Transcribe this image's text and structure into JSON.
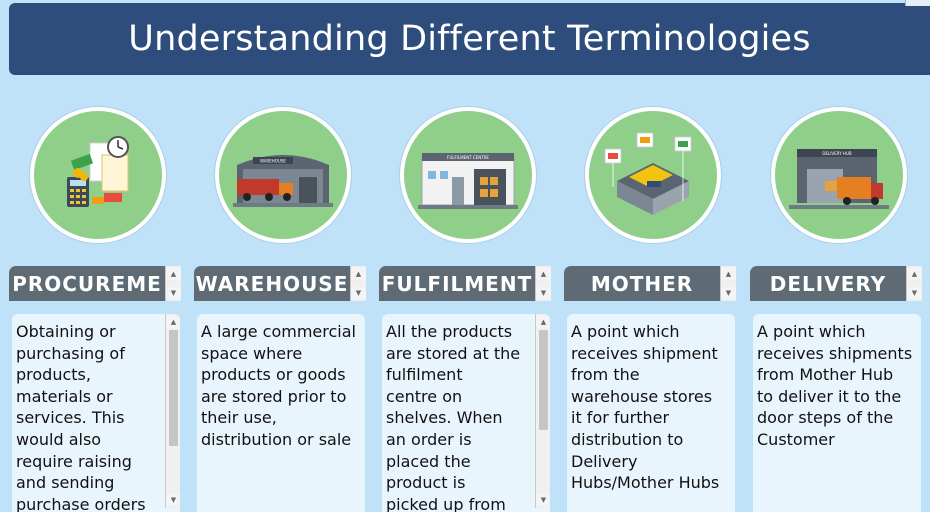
{
  "title": "Understanding Different Terminologies",
  "columns": [
    {
      "header": "PROCUREME",
      "icon": "procurement-icon",
      "text": "Obtaining or\npurchasing of\nproducts,\nmaterials or\nservices. This\nwould also\nrequire raising\nand sending\npurchase orders"
    },
    {
      "header": "WAREHOUSE",
      "icon": "warehouse-icon",
      "text": "A large commercial\nspace where\nproducts or goods\nare stored prior to\ntheir use,\ndistribution or sale"
    },
    {
      "header": "FULFILMENT",
      "icon": "fulfilment-centre-icon",
      "text": "All the products\nare stored at the\nfulfilment\ncentre on\nshelves. When\nan order is\nplaced the\nproduct is\npicked up from"
    },
    {
      "header": "MOTHER",
      "icon": "mother-hub-icon",
      "text": "A point which\nreceives  shipment\nfrom the\nwarehouse  stores\nit  for further\ndistribution to\nDelivery\nHubs/Mother Hubs"
    },
    {
      "header": "DELIVERY",
      "icon": "delivery-hub-icon",
      "text": "A point which\nreceives shipments\nfrom Mother Hub\nto deliver it to the\ndoor steps of the\nCustomer"
    }
  ],
  "illustration_text": {
    "warehouse_sign": "WAREHOUSE",
    "fulfilment_sign": "FULFILMENT CENTRE",
    "delivery_sign": "DELIVERY HUB"
  }
}
